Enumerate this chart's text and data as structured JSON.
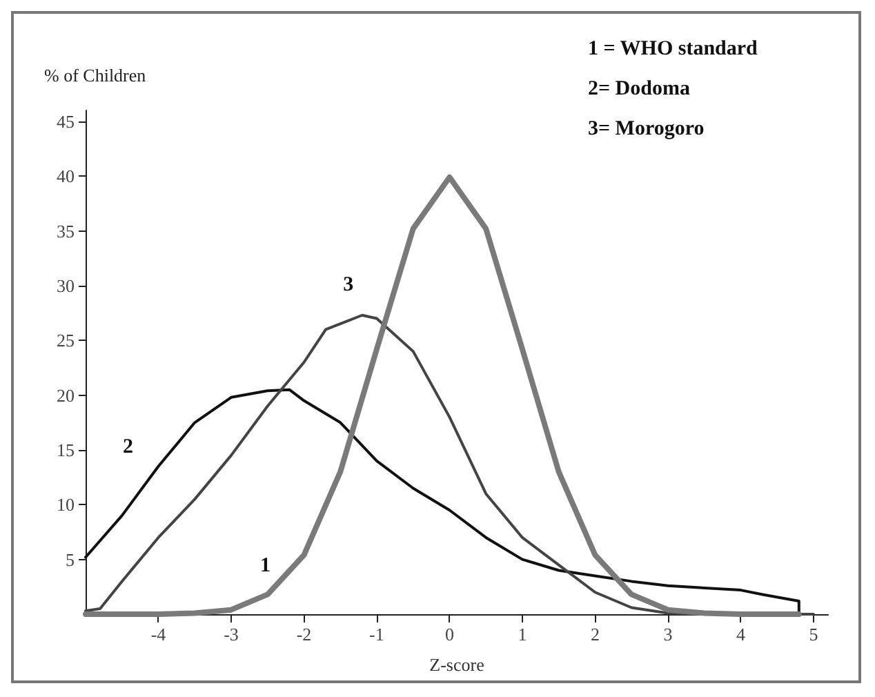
{
  "chart_data": {
    "type": "line",
    "xlabel": "Z-score",
    "ylabel": "% of Children",
    "xlim": [
      -5,
      5.2
    ],
    "ylim": [
      0,
      46
    ],
    "xticks": [
      -4,
      -3,
      -2,
      -1,
      0,
      1,
      2,
      3,
      4,
      5
    ],
    "yticks": [
      5,
      10,
      15,
      20,
      25,
      30,
      35,
      40,
      45
    ],
    "grid": false,
    "legend": false,
    "marker": "none",
    "line_style": "solid",
    "series": [
      {
        "name": "1",
        "color": "#7a7a7a",
        "x": [
          -5,
          -4,
          -3.5,
          -3,
          -2.5,
          -2,
          -1.5,
          -1,
          -0.5,
          0,
          0.5,
          1,
          1.5,
          2,
          2.5,
          3,
          3.5,
          4,
          4.8
        ],
        "values": [
          0,
          0,
          0.1,
          0.4,
          1.8,
          5.4,
          13,
          24.2,
          35.2,
          39.9,
          35.2,
          24.2,
          13,
          5.4,
          1.8,
          0.4,
          0.1,
          0,
          0
        ]
      },
      {
        "name": "2",
        "color": "#111111",
        "x": [
          -5,
          -4.5,
          -4,
          -3.5,
          -3,
          -2.5,
          -2.2,
          -2,
          -1.5,
          -1,
          -0.5,
          0,
          0.5,
          1,
          1.5,
          2,
          2.5,
          3,
          3.5,
          4,
          4.3,
          4.8,
          4.8
        ],
        "values": [
          5.2,
          9,
          13.5,
          17.5,
          19.8,
          20.4,
          20.5,
          19.5,
          17.5,
          14,
          11.5,
          9.5,
          7,
          5,
          4,
          3.5,
          3,
          2.6,
          2.4,
          2.2,
          1.8,
          1.2,
          0.3
        ]
      },
      {
        "name": "3",
        "color": "#444444",
        "x": [
          -5,
          -4.8,
          -4.5,
          -4,
          -3.5,
          -3,
          -2.5,
          -2,
          -1.7,
          -1.2,
          -1,
          -0.5,
          0,
          0.5,
          1,
          1.5,
          2,
          2.5,
          3,
          3.5,
          5
        ],
        "values": [
          0.3,
          0.5,
          3,
          7,
          10.5,
          14.5,
          19,
          23,
          26,
          27.3,
          27,
          24,
          18,
          11,
          7,
          4.5,
          2,
          0.6,
          0.1,
          0,
          0
        ]
      }
    ],
    "annotations": [
      "1 = WHO standard",
      "2= Dodoma",
      "3= Morogoro"
    ]
  }
}
